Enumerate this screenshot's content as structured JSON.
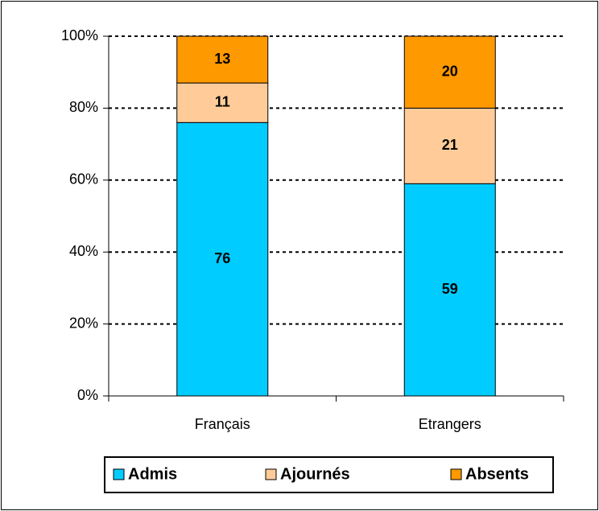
{
  "chart_data": {
    "type": "stacked_bar",
    "categories": [
      "Français",
      "Etrangers"
    ],
    "series": [
      {
        "name": "Admis",
        "color": "#00ccff",
        "values": [
          76,
          59
        ]
      },
      {
        "name": "Ajournés",
        "color": "#ffcc99",
        "values": [
          11,
          21
        ]
      },
      {
        "name": "Absents",
        "color": "#ff9900",
        "values": [
          13,
          20
        ]
      }
    ],
    "ylim": [
      0,
      100
    ],
    "yticks": [
      {
        "value": 0,
        "label": "0%"
      },
      {
        "value": 20,
        "label": "20%"
      },
      {
        "value": 40,
        "label": "40%"
      },
      {
        "value": 60,
        "label": "60%"
      },
      {
        "value": 80,
        "label": "80%"
      },
      {
        "value": 100,
        "label": "100%"
      }
    ],
    "grid": true,
    "legend": "bottom"
  }
}
